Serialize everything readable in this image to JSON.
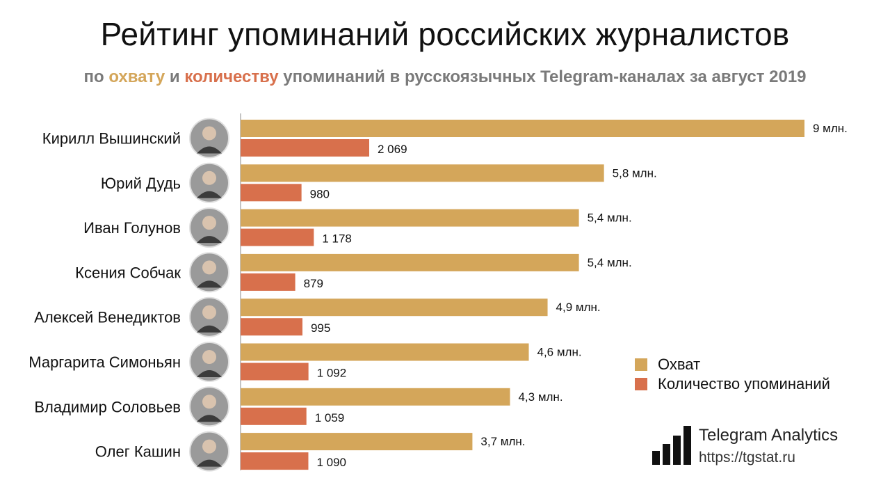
{
  "title": "Рейтинг упоминаний российских журналистов",
  "subtitle": {
    "p1": "по ",
    "reach_word": "охвату",
    "p2": " и ",
    "count_word": "количеству",
    "p3": " упоминаний в русскоязычных Telegram-каналах за август 2019"
  },
  "colors": {
    "reach": "#d4a65a",
    "count": "#d8704c"
  },
  "chart_data": {
    "type": "bar",
    "orientation": "horizontal",
    "categories": [
      "Кирилл Вышинский",
      "Юрий Дудь",
      "Иван Голунов",
      "Ксения Собчак",
      "Алексей Венедиктов",
      "Маргарита Симоньян",
      "Владимир Соловьев",
      "Олег Кашин"
    ],
    "series": [
      {
        "name": "Охват",
        "values": [
          9.0,
          5.8,
          5.4,
          5.4,
          4.9,
          4.6,
          4.3,
          3.7
        ],
        "labels": [
          "9 млн.",
          "5,8 млн.",
          "5,4 млн.",
          "5,4 млн.",
          "4,9 млн.",
          "4,6 млн.",
          "4,3 млн.",
          "3,7 млн."
        ]
      },
      {
        "name": "Количество упоминаний",
        "values": [
          2069,
          980,
          1178,
          879,
          995,
          1092,
          1059,
          1090
        ],
        "labels": [
          "2 069",
          "980",
          "1 178",
          "879",
          "995",
          "1 092",
          "1 059",
          "1 090"
        ]
      }
    ],
    "grid": false,
    "legend": "right"
  },
  "brand": {
    "name": "Telegram Analytics",
    "url": "https://tgstat.ru",
    "icon": "bar-chart-logo-icon"
  }
}
